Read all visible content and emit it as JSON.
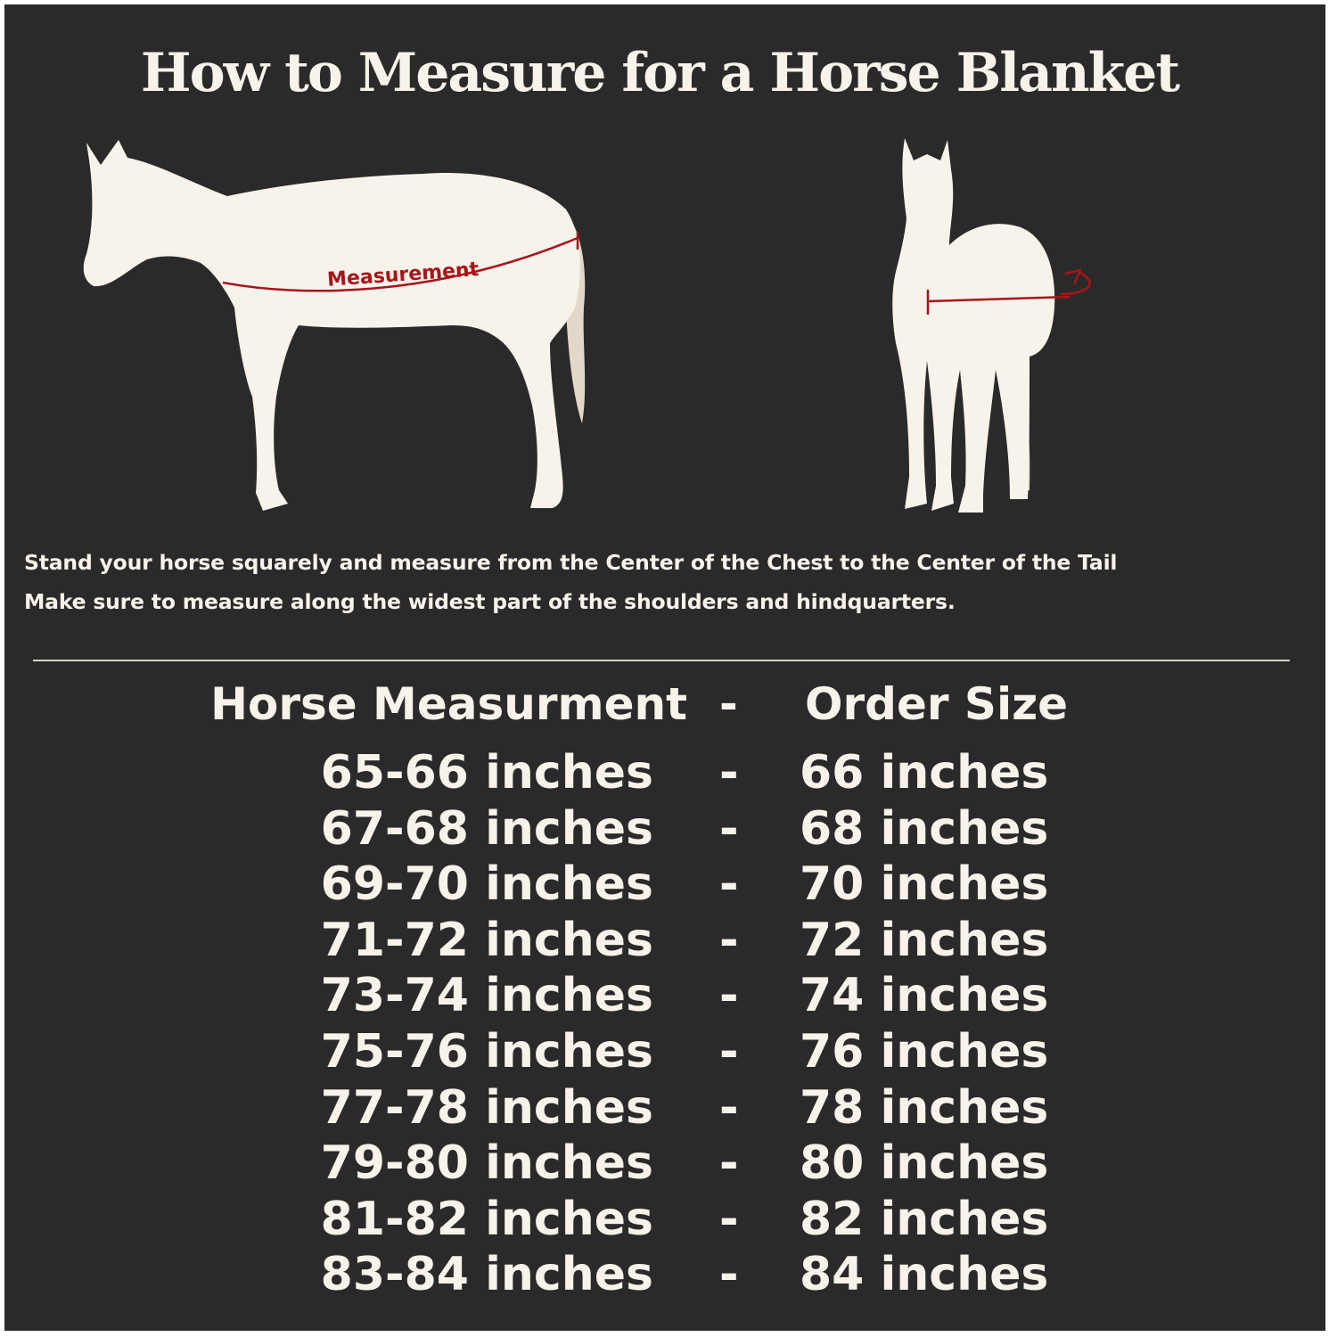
{
  "title": "How to Measure for a Horse Blanket",
  "diagram": {
    "measurement_label": "Measurement",
    "colors": {
      "background": "#2b2a2a",
      "horse": "#f7f2ea",
      "tail": "#e3d7c8",
      "measure_line": "#a8141b"
    }
  },
  "instructions": [
    "Stand your horse squarely and measure from the Center of the Chest to the Center of the Tail",
    "Make sure to measure along the widest part of the shoulders and hindquarters."
  ],
  "table": {
    "header": {
      "measurement": "Horse Measurment",
      "separator": "-",
      "size": "Order Size"
    },
    "rows": [
      {
        "measurement": "65-66 inches",
        "separator": "-",
        "size": "66 inches"
      },
      {
        "measurement": "67-68 inches",
        "separator": "-",
        "size": "68 inches"
      },
      {
        "measurement": "69-70 inches",
        "separator": "-",
        "size": "70 inches"
      },
      {
        "measurement": "71-72 inches",
        "separator": "-",
        "size": "72 inches"
      },
      {
        "measurement": "73-74 inches",
        "separator": "-",
        "size": "74 inches"
      },
      {
        "measurement": "75-76 inches",
        "separator": "-",
        "size": "76 inches"
      },
      {
        "measurement": "77-78 inches",
        "separator": "-",
        "size": "78 inches"
      },
      {
        "measurement": "79-80 inches",
        "separator": "-",
        "size": "80 inches"
      },
      {
        "measurement": "81-82 inches",
        "separator": "-",
        "size": "82 inches"
      },
      {
        "measurement": "83-84 inches",
        "separator": "-",
        "size": "84 inches"
      }
    ]
  }
}
